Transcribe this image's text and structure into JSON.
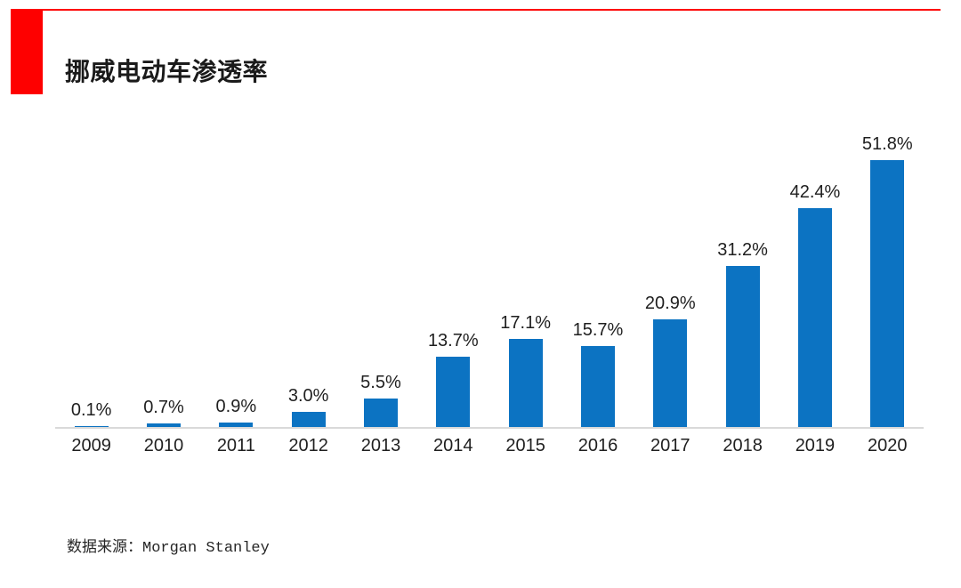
{
  "page": {
    "title": "挪威电动车渗透率",
    "source_note": "数据来源：Morgan Stanley"
  },
  "theme": {
    "accent_red": "#fe0000",
    "bar_blue": "#0c73c2",
    "axis_gray": "#d9d9d9",
    "text_dark": "#1f1f1f"
  },
  "chart_data": {
    "type": "bar",
    "title": "挪威电动车渗透率",
    "categories": [
      "2009",
      "2010",
      "2011",
      "2012",
      "2013",
      "2014",
      "2015",
      "2016",
      "2017",
      "2018",
      "2019",
      "2020"
    ],
    "values": [
      0.1,
      0.7,
      0.9,
      3.0,
      5.5,
      13.7,
      17.1,
      15.7,
      20.9,
      31.2,
      42.4,
      51.8
    ],
    "data_labels": [
      "0.1%",
      "0.7%",
      "0.9%",
      "3.0%",
      "5.5%",
      "13.7%",
      "17.1%",
      "15.7%",
      "20.9%",
      "31.2%",
      "42.4%",
      "51.8%"
    ],
    "unit": "%",
    "xlabel": "",
    "ylabel": "",
    "ylim": [
      0,
      55
    ],
    "grid": false,
    "legend": false,
    "y_axis_visible": false,
    "data_labels_position": "above-bars",
    "source": "数据来源：Morgan Stanley"
  }
}
